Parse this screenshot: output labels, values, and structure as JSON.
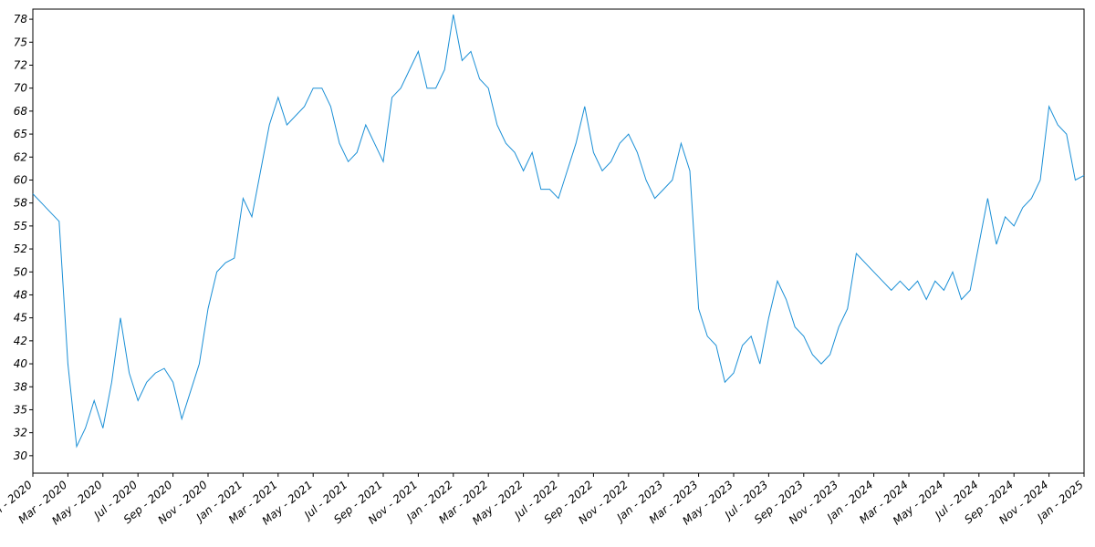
{
  "chart_data": {
    "type": "line",
    "color": "#1a8fd6",
    "xlim": [
      "2020-01",
      "2025-01"
    ],
    "ylim": [
      28.1,
      78.6
    ],
    "xticks": [
      {
        "value": "2020-01",
        "label": "Jan - 2020"
      },
      {
        "value": "2020-03",
        "label": "Mar - 2020"
      },
      {
        "value": "2020-05",
        "label": "May - 2020"
      },
      {
        "value": "2020-07",
        "label": "Jul - 2020"
      },
      {
        "value": "2020-09",
        "label": "Sep - 2020"
      },
      {
        "value": "2020-11",
        "label": "Nov - 2020"
      },
      {
        "value": "2021-01",
        "label": "Jan - 2021"
      },
      {
        "value": "2021-03",
        "label": "Mar - 2021"
      },
      {
        "value": "2021-05",
        "label": "May - 2021"
      },
      {
        "value": "2021-07",
        "label": "Jul - 2021"
      },
      {
        "value": "2021-09",
        "label": "Sep - 2021"
      },
      {
        "value": "2021-11",
        "label": "Nov - 2021"
      },
      {
        "value": "2022-01",
        "label": "Jan - 2022"
      },
      {
        "value": "2022-03",
        "label": "Mar - 2022"
      },
      {
        "value": "2022-05",
        "label": "May - 2022"
      },
      {
        "value": "2022-07",
        "label": "Jul - 2022"
      },
      {
        "value": "2022-09",
        "label": "Sep - 2022"
      },
      {
        "value": "2022-11",
        "label": "Nov - 2022"
      },
      {
        "value": "2023-01",
        "label": "Jan - 2023"
      },
      {
        "value": "2023-03",
        "label": "Mar - 2023"
      },
      {
        "value": "2023-05",
        "label": "May - 2023"
      },
      {
        "value": "2023-07",
        "label": "Jul - 2023"
      },
      {
        "value": "2023-09",
        "label": "Sep - 2023"
      },
      {
        "value": "2023-11",
        "label": "Nov - 2023"
      },
      {
        "value": "2024-01",
        "label": "Jan - 2024"
      },
      {
        "value": "2024-03",
        "label": "Mar - 2024"
      },
      {
        "value": "2024-05",
        "label": "May - 2024"
      },
      {
        "value": "2024-07",
        "label": "Jul - 2024"
      },
      {
        "value": "2024-09",
        "label": "Sep - 2024"
      },
      {
        "value": "2024-11",
        "label": "Nov - 2024"
      },
      {
        "value": "2025-01",
        "label": "Jan - 2025"
      }
    ],
    "yticks": [
      30,
      {
        "value": 32.5,
        "label": "32"
      },
      35,
      {
        "value": 37.5,
        "label": "38"
      },
      40,
      {
        "value": 42.5,
        "label": "42"
      },
      45,
      {
        "value": 47.5,
        "label": "48"
      },
      50,
      {
        "value": 52.5,
        "label": "52"
      },
      55,
      {
        "value": 57.5,
        "label": "58"
      },
      60,
      {
        "value": 62.5,
        "label": "62"
      },
      65,
      {
        "value": 67.5,
        "label": "68"
      },
      70,
      {
        "value": 72.5,
        "label": "72"
      },
      75,
      {
        "value": 77.5,
        "label": "78"
      }
    ],
    "x": [
      "2020-01",
      "2020-01",
      "2020-02",
      "2020-02",
      "2020-03",
      "2020-03",
      "2020-04",
      "2020-04",
      "2020-05",
      "2020-05",
      "2020-06",
      "2020-06",
      "2020-07",
      "2020-07",
      "2020-08",
      "2020-08",
      "2020-09",
      "2020-09",
      "2020-10",
      "2020-10",
      "2020-11",
      "2020-11",
      "2020-12",
      "2020-12",
      "2021-01",
      "2021-01",
      "2021-02",
      "2021-02",
      "2021-03",
      "2021-03",
      "2021-04",
      "2021-04",
      "2021-05",
      "2021-05",
      "2021-06",
      "2021-06",
      "2021-07",
      "2021-07",
      "2021-08",
      "2021-08",
      "2021-09",
      "2021-09",
      "2021-10",
      "2021-10",
      "2021-11",
      "2021-11",
      "2021-12",
      "2021-12",
      "2022-01",
      "2022-01",
      "2022-02",
      "2022-02",
      "2022-03",
      "2022-03",
      "2022-04",
      "2022-04",
      "2022-05",
      "2022-05",
      "2022-06",
      "2022-06",
      "2022-07",
      "2022-07",
      "2022-08",
      "2022-08",
      "2022-09",
      "2022-09",
      "2022-10",
      "2022-10",
      "2022-11",
      "2022-11",
      "2022-12",
      "2022-12",
      "2023-01",
      "2023-01",
      "2023-02",
      "2023-02",
      "2023-03",
      "2023-03",
      "2023-04",
      "2023-04",
      "2023-05",
      "2023-05",
      "2023-06",
      "2023-06",
      "2023-07",
      "2023-07",
      "2023-08",
      "2023-08",
      "2023-09",
      "2023-09",
      "2023-10",
      "2023-10",
      "2023-11",
      "2023-11",
      "2023-12",
      "2023-12",
      "2024-01",
      "2024-01",
      "2024-02",
      "2024-02",
      "2024-03",
      "2024-03",
      "2024-04",
      "2024-04",
      "2024-05",
      "2024-05",
      "2024-06",
      "2024-06",
      "2024-07",
      "2024-07",
      "2024-08",
      "2024-08",
      "2024-09",
      "2024-09",
      "2024-10",
      "2024-10",
      "2024-11",
      "2024-11",
      "2024-12",
      "2024-12",
      "2025-01"
    ],
    "values": [
      58.5,
      57.5,
      56.5,
      55.5,
      40,
      31,
      33,
      36,
      33,
      38,
      45,
      39,
      36,
      38,
      39,
      39.5,
      38,
      34,
      37,
      40,
      46,
      50,
      51,
      51.5,
      58,
      56,
      61,
      66,
      69,
      66,
      67,
      68,
      70,
      70,
      68,
      64,
      62,
      63,
      66,
      64,
      62,
      69,
      70,
      72,
      74,
      70,
      70,
      72,
      78,
      73,
      74,
      71,
      70,
      66,
      64,
      63,
      61,
      63,
      59,
      59,
      58,
      61,
      64,
      68,
      63,
      61,
      62,
      64,
      65,
      63,
      60,
      58,
      59,
      60,
      64,
      61,
      46,
      43,
      42,
      38,
      39,
      42,
      43,
      40,
      45,
      49,
      47,
      44,
      43,
      41,
      40,
      41,
      44,
      46,
      52,
      51,
      50,
      49,
      48,
      49,
      48,
      49,
      47,
      49,
      48,
      50,
      47,
      48,
      53,
      58,
      53,
      56,
      55,
      57,
      58,
      60,
      68,
      66,
      65,
      60,
      60.5
    ]
  }
}
